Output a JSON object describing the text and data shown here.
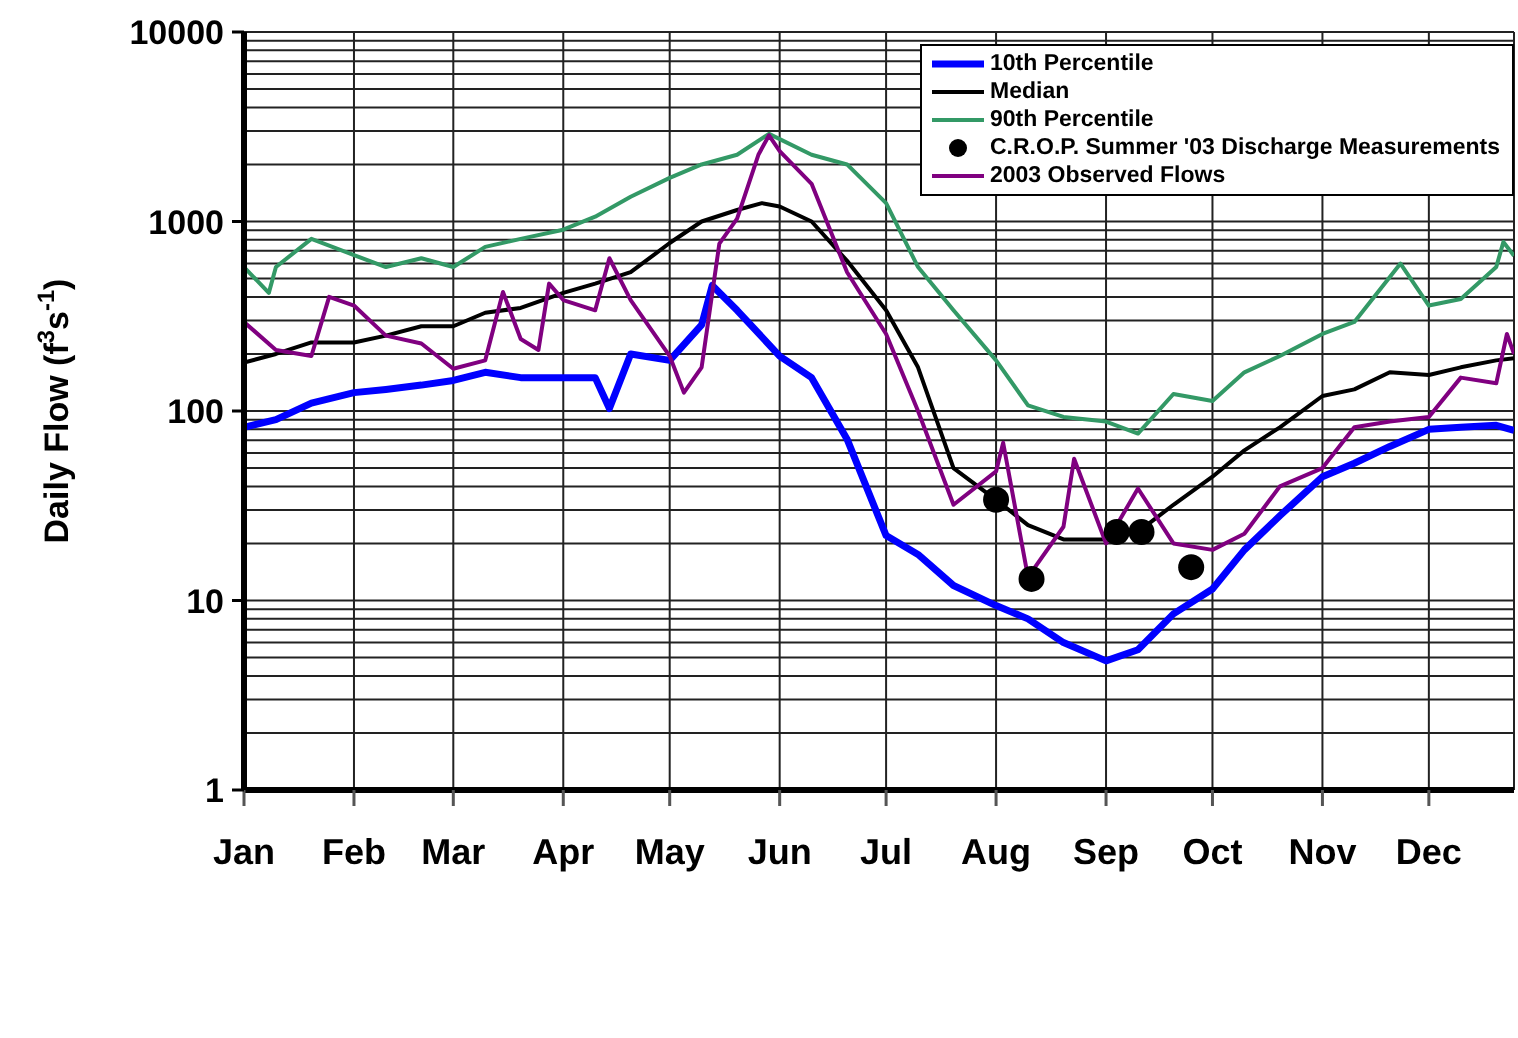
{
  "chart_data": {
    "type": "line",
    "ylabel": "Daily Flow (f$^{3}$s$^{-1}$)",
    "log": true,
    "grid": true,
    "legend": "top right",
    "marker": "none",
    "xlim": [
      "--01-01",
      "--12-25"
    ],
    "xticks": [
      {
        "value": "--01-01",
        "label": "Jan"
      },
      {
        "value": "--02-01",
        "label": "Feb"
      },
      {
        "value": "--03-01",
        "label": "Mar"
      },
      {
        "value": "--04-01",
        "label": "Apr"
      },
      {
        "value": "--05-01",
        "label": "May"
      },
      {
        "value": "--06-01",
        "label": "Jun"
      },
      {
        "value": "--07-01",
        "label": "Jul"
      },
      {
        "value": "--08-01",
        "label": "Aug"
      },
      {
        "value": "--09-01",
        "label": "Sep"
      },
      {
        "value": "--10-01",
        "label": "Oct"
      },
      {
        "value": "--11-01",
        "label": "Nov"
      },
      {
        "value": "--12-01",
        "label": "Dec"
      }
    ],
    "ylim": [
      1,
      10000
    ],
    "yticks": [
      1,
      {
        "value": 2,
        "label": null
      },
      {
        "value": 3,
        "label": null
      },
      {
        "value": 4,
        "label": null
      },
      {
        "value": 5,
        "label": null
      },
      {
        "value": 6,
        "label": null
      },
      {
        "value": 7,
        "label": null
      },
      {
        "value": 8,
        "label": null
      },
      {
        "value": 9,
        "label": null
      },
      10,
      {
        "value": 20,
        "label": null
      },
      {
        "value": 30,
        "label": null
      },
      {
        "value": 40,
        "label": null
      },
      {
        "value": 50,
        "label": null
      },
      {
        "value": 60,
        "label": null
      },
      {
        "value": 70,
        "label": null
      },
      {
        "value": 80,
        "label": null
      },
      {
        "value": 90,
        "label": null
      },
      100,
      {
        "value": 200,
        "label": null
      },
      {
        "value": 300,
        "label": null
      },
      {
        "value": 400,
        "label": null
      },
      {
        "value": 500,
        "label": null
      },
      {
        "value": 600,
        "label": null
      },
      {
        "value": 700,
        "label": null
      },
      {
        "value": 800,
        "label": null
      },
      {
        "value": 900,
        "label": null
      },
      1000,
      {
        "value": 2000,
        "label": null
      },
      {
        "value": 3000,
        "label": null
      },
      {
        "value": 4000,
        "label": null
      },
      {
        "value": 5000,
        "label": null
      },
      {
        "value": 6000,
        "label": null
      },
      {
        "value": 7000,
        "label": null
      },
      {
        "value": 8000,
        "label": null
      },
      {
        "value": 9000,
        "label": null
      },
      10000
    ],
    "series": [
      {
        "name": "10th Percentile",
        "color": "#0000ff",
        "x": [
          "--01-01",
          "--01-10",
          "--01-20",
          "--02-01",
          "--02-10",
          "--02-20",
          "--03-01",
          "--03-10",
          "--03-20",
          "--04-01",
          "--04-10",
          "--04-14",
          "--04-20",
          "--05-01",
          "--05-10",
          "--05-13",
          "--05-20",
          "--06-01",
          "--06-10",
          "--06-20",
          "--07-01",
          "--07-10",
          "--07-20",
          "--08-01",
          "--08-10",
          "--08-20",
          "--09-01",
          "--09-10",
          "--09-20",
          "--10-01",
          "--10-10",
          "--10-20",
          "--11-01",
          "--11-10",
          "--11-20",
          "--12-01",
          "--12-10",
          "--12-20",
          "--12-25"
        ],
        "values": [
          82,
          90,
          110,
          125,
          130,
          137,
          145,
          160,
          150,
          150,
          150,
          103,
          200,
          185,
          285,
          460,
          340,
          195,
          150,
          71,
          22,
          17.5,
          12,
          9.4,
          8,
          6,
          4.8,
          5.5,
          8.5,
          11.5,
          18.5,
          28,
          45,
          53,
          65,
          80,
          82,
          84,
          79
        ]
      },
      {
        "name": "Median",
        "color": "#000000",
        "x": [
          "--01-01",
          "--01-10",
          "--01-20",
          "--02-01",
          "--02-10",
          "--02-20",
          "--03-01",
          "--03-10",
          "--03-20",
          "--04-01",
          "--04-10",
          "--04-20",
          "--05-01",
          "--05-10",
          "--05-20",
          "--05-27",
          "--06-01",
          "--06-10",
          "--06-20",
          "--07-01",
          "--07-10",
          "--07-20",
          "--08-01",
          "--08-10",
          "--08-20",
          "--09-01",
          "--09-10",
          "--09-20",
          "--10-01",
          "--10-10",
          "--10-20",
          "--11-01",
          "--11-10",
          "--11-20",
          "--12-01",
          "--12-10",
          "--12-20",
          "--12-25"
        ],
        "values": [
          180,
          200,
          230,
          230,
          250,
          280,
          280,
          330,
          350,
          420,
          470,
          540,
          770,
          1000,
          1150,
          1250,
          1200,
          1000,
          620,
          340,
          170,
          50,
          34,
          25,
          21,
          21,
          23,
          32,
          45,
          62,
          82,
          120,
          130,
          160,
          155,
          170,
          185,
          190
        ]
      },
      {
        "name": "90th Percentile",
        "color": "#339966",
        "x": [
          "--01-01",
          "--01-08",
          "--01-10",
          "--01-20",
          "--02-01",
          "--02-10",
          "--02-20",
          "--03-01",
          "--03-10",
          "--03-20",
          "--04-01",
          "--04-10",
          "--04-20",
          "--05-01",
          "--05-10",
          "--05-20",
          "--05-29",
          "--06-10",
          "--06-20",
          "--07-01",
          "--07-10",
          "--07-20",
          "--08-01",
          "--08-10",
          "--08-20",
          "--09-01",
          "--09-10",
          "--09-20",
          "--10-01",
          "--10-10",
          "--10-20",
          "--11-01",
          "--11-10",
          "--11-20",
          "--11-23",
          "--12-01",
          "--12-10",
          "--12-20",
          "--12-22",
          "--12-25"
        ],
        "values": [
          575,
          420,
          575,
          810,
          665,
          575,
          640,
          575,
          735,
          810,
          905,
          1060,
          1350,
          1700,
          2000,
          2250,
          2900,
          2250,
          2000,
          1250,
          575,
          340,
          185,
          107,
          93,
          88,
          76,
          123,
          113,
          160,
          195,
          255,
          295,
          510,
          600,
          360,
          390,
          575,
          780,
          660
        ]
      },
      {
        "name": "C.R.O.P. Summer '03 Discharge Measurements",
        "type": "scatter",
        "marker": "circle",
        "color": "#000000",
        "x": [
          "--08-01",
          "--08-11",
          "--09-04",
          "--09-11",
          "--09-25"
        ],
        "values": [
          34,
          13,
          23,
          23,
          15
        ]
      },
      {
        "name": "2003 Observed Flows",
        "color": "#800080",
        "x": [
          "--01-01",
          "--01-10",
          "--01-20",
          "--01-25",
          "--02-01",
          "--02-10",
          "--02-20",
          "--03-01",
          "--03-10",
          "--03-15",
          "--03-20",
          "--03-25",
          "--03-28",
          "--04-01",
          "--04-10",
          "--04-14",
          "--04-20",
          "--05-01",
          "--05-05",
          "--05-10",
          "--05-15",
          "--05-20",
          "--05-26",
          "--05-29",
          "--06-01",
          "--06-10",
          "--06-20",
          "--07-01",
          "--07-10",
          "--07-20",
          "--08-01",
          "--08-03",
          "--08-10",
          "--08-20",
          "--08-23",
          "--09-01",
          "--09-10",
          "--09-20",
          "--10-01",
          "--10-10",
          "--10-20",
          "--11-01",
          "--11-10",
          "--11-20",
          "--12-01",
          "--12-10",
          "--12-20",
          "--12-23",
          "--12-25"
        ],
        "values": [
          295,
          210,
          195,
          400,
          360,
          250,
          227,
          167,
          185,
          425,
          240,
          210,
          470,
          385,
          340,
          640,
          385,
          195,
          125,
          170,
          765,
          1035,
          2250,
          2850,
          2350,
          1580,
          540,
          255,
          100,
          32,
          48,
          68,
          13.3,
          24.5,
          56,
          20,
          39,
          20,
          18.5,
          22.5,
          40,
          50,
          82,
          88,
          93,
          150,
          140,
          255,
          200
        ]
      }
    ]
  }
}
